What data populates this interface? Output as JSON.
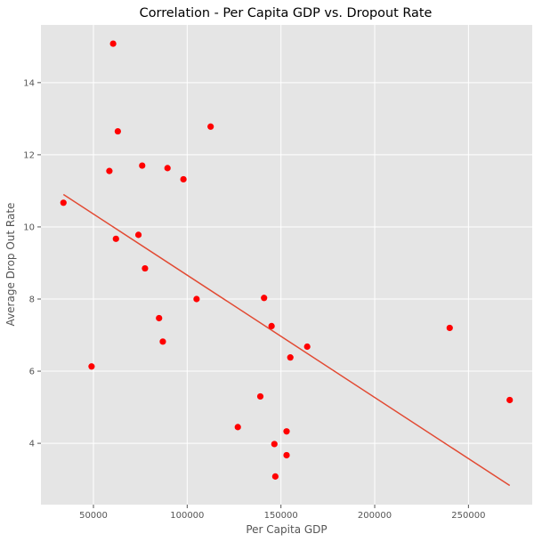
{
  "chart_data": {
    "type": "scatter",
    "title": "Correlation - Per Capita GDP vs. Dropout Rate",
    "xlabel": "Per Capita GDP",
    "ylabel": "Average Drop Out Rate",
    "xlim": [
      22000,
      284000
    ],
    "ylim": [
      2.3,
      15.6
    ],
    "grid": true,
    "xticks": [
      50000,
      100000,
      150000,
      200000,
      250000
    ],
    "yticks": [
      4,
      6,
      8,
      10,
      12,
      14
    ],
    "colors": {
      "points": "#ff0000",
      "trendline": "#e24a33",
      "background": "#e5e5e5",
      "grid": "#ffffff"
    },
    "points": [
      {
        "x": 34000,
        "y": 10.67
      },
      {
        "x": 49000,
        "y": 6.13
      },
      {
        "x": 58500,
        "y": 11.55
      },
      {
        "x": 60500,
        "y": 15.08
      },
      {
        "x": 62000,
        "y": 9.67
      },
      {
        "x": 63000,
        "y": 12.65
      },
      {
        "x": 74000,
        "y": 9.78
      },
      {
        "x": 76000,
        "y": 11.7
      },
      {
        "x": 77500,
        "y": 8.85
      },
      {
        "x": 85000,
        "y": 7.47
      },
      {
        "x": 87000,
        "y": 6.82
      },
      {
        "x": 89500,
        "y": 11.63
      },
      {
        "x": 98000,
        "y": 11.32
      },
      {
        "x": 105000,
        "y": 8.0
      },
      {
        "x": 112500,
        "y": 12.78
      },
      {
        "x": 127000,
        "y": 4.45
      },
      {
        "x": 139000,
        "y": 5.3
      },
      {
        "x": 141000,
        "y": 8.03
      },
      {
        "x": 145000,
        "y": 7.25
      },
      {
        "x": 146500,
        "y": 3.98
      },
      {
        "x": 147000,
        "y": 3.08
      },
      {
        "x": 153000,
        "y": 4.33
      },
      {
        "x": 153000,
        "y": 3.67
      },
      {
        "x": 155000,
        "y": 6.38
      },
      {
        "x": 164000,
        "y": 6.68
      },
      {
        "x": 240000,
        "y": 7.2
      },
      {
        "x": 272000,
        "y": 5.2
      }
    ],
    "trendline": [
      {
        "x": 34000,
        "y": 10.9
      },
      {
        "x": 272000,
        "y": 2.83
      }
    ]
  }
}
